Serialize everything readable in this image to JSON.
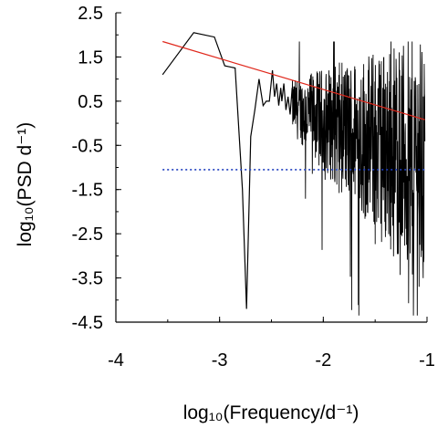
{
  "chart_data": {
    "type": "line",
    "title": "",
    "xlabel": "log₁₀(Frequency/d⁻¹)",
    "ylabel": "log₁₀(PSD d⁻¹)",
    "xlim": [
      -4,
      -1
    ],
    "ylim": [
      -4.5,
      2.5
    ],
    "x_ticks": [
      "-4",
      "-3",
      "-2",
      "-1"
    ],
    "y_ticks": [
      "2.5",
      "1.5",
      "0.5",
      "-0.5",
      "-1.5",
      "-2.5",
      "-3.5",
      "-4.5"
    ],
    "x_minor_step": 0.5,
    "y_minor_step": 0.5,
    "grid": false,
    "legend": "none",
    "series": [
      {
        "style": "solid",
        "color": "#000000",
        "x": [
          -3.55,
          -3.25,
          -3.05,
          -2.95,
          -2.85,
          -2.78,
          -2.74,
          -2.7,
          -2.66,
          -2.62,
          -2.6,
          -2.58,
          -2.55,
          -2.52,
          -2.49,
          -2.47,
          -2.45,
          -2.43,
          -2.41,
          -2.4,
          -2.38,
          -2.36,
          -2.34,
          -2.32,
          -2.3
        ],
        "y": [
          1.1,
          2.05,
          1.95,
          1.3,
          1.25,
          -1.5,
          -4.2,
          -0.3,
          0.3,
          1.0,
          0.7,
          0.4,
          0.5,
          0.5,
          1.2,
          0.6,
          0.9,
          0.4,
          0.8,
          0.5,
          0.9,
          0.3,
          0.6,
          0.2,
          0.8
        ]
      },
      {
        "style": "dense-noise",
        "color": "#000000",
        "x_range": [
          -2.3,
          -1.02
        ],
        "note": ""
      },
      {
        "style": "solid",
        "color": "#e0281c",
        "x": [
          -3.55,
          -1.02
        ],
        "y": [
          1.85,
          0.08
        ]
      },
      {
        "style": "dotted",
        "color": "#1f3fbf",
        "x": [
          -3.55,
          -1.02
        ],
        "y": [
          -1.05,
          -1.05
        ]
      }
    ]
  }
}
